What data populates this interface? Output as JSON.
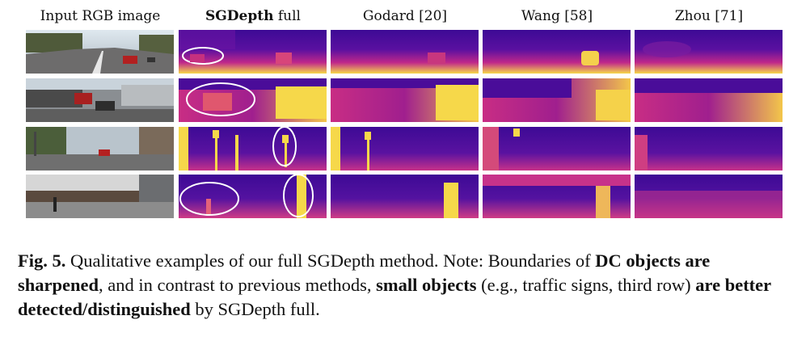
{
  "columns": [
    {
      "plain": "Input RGB image"
    },
    {
      "bold": "SGDepth",
      "plain": " full"
    },
    {
      "plain": "Godard [20]"
    },
    {
      "plain": "Wang [58]"
    },
    {
      "plain": "Zhou [71]"
    }
  ],
  "caption": {
    "label": "Fig. 5.",
    "text1": " Qualitative examples of our full SGDepth method. Note: Boundaries of ",
    "bold1": "DC objects are sharpened",
    "text2": ", and in contrast to previous methods, ",
    "bold2": "small objects",
    "text3": " (e.g., traffic signs, third row) ",
    "bold3": "are better detected/distinguished",
    "text4": " by SGDepth full."
  },
  "colors": {
    "depth_far": "#3d0a95",
    "depth_mid": "#c0288a",
    "depth_near": "#f6d84a",
    "highlight_ellipse": "#ffffff"
  }
}
